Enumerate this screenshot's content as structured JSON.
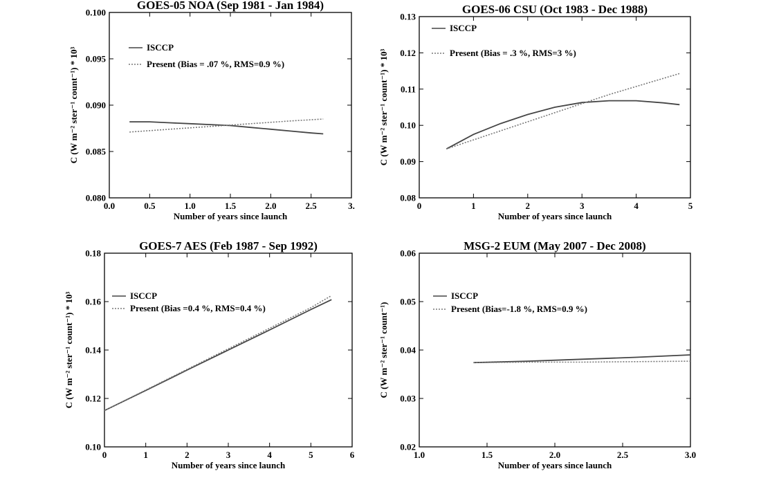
{
  "chart_data": [
    {
      "type": "line",
      "title": "GOES-05 NOA (Sep 1981 - Jan 1984)",
      "xlabel": "Number of years since launch",
      "ylabel": "C (W m⁻² ster⁻¹ count⁻¹) * 10³",
      "xlim": [
        0.0,
        3.0
      ],
      "ylim": [
        0.08,
        0.1
      ],
      "x_ticks": [
        "0.0",
        "0.5",
        "1.0",
        "1.5",
        "2.0",
        "2.5",
        "3."
      ],
      "x_tick_values": [
        0.0,
        0.5,
        1.0,
        1.5,
        2.0,
        2.5,
        3.0
      ],
      "y_ticks": [
        "0.080",
        "0.085",
        "0.090",
        "0.095",
        "0.100"
      ],
      "y_tick_values": [
        0.08,
        0.085,
        0.09,
        0.095,
        0.1
      ],
      "legend_position": "upper-left",
      "series": [
        {
          "name": "ISCCP",
          "style": "solid",
          "x": [
            0.25,
            0.5,
            0.75,
            1.0,
            1.25,
            1.5,
            1.75,
            2.0,
            2.25,
            2.5,
            2.65
          ],
          "y": [
            0.0882,
            0.0882,
            0.0881,
            0.088,
            0.0879,
            0.0878,
            0.0876,
            0.0874,
            0.0872,
            0.087,
            0.0869
          ]
        },
        {
          "name": "Present (Bias = .07 %, RMS=0.9 %)",
          "style": "dotted",
          "x": [
            0.25,
            0.75,
            1.25,
            1.75,
            2.25,
            2.65
          ],
          "y": [
            0.0871,
            0.0874,
            0.0877,
            0.088,
            0.0883,
            0.0885
          ]
        }
      ]
    },
    {
      "type": "line",
      "title": "GOES-06 CSU (Oct 1983 - Dec 1988)",
      "xlabel": "Number of years since launch",
      "ylabel": "C (W m⁻² ster⁻¹ count⁻¹) * 10³",
      "xlim": [
        0,
        5
      ],
      "ylim": [
        0.08,
        0.13
      ],
      "x_ticks": [
        "0",
        "1",
        "2",
        "3",
        "4",
        "5"
      ],
      "x_tick_values": [
        0,
        1,
        2,
        3,
        4,
        5
      ],
      "y_ticks": [
        "0.08",
        "0.09",
        "0.10",
        "0.11",
        "0.12",
        "0.13"
      ],
      "y_tick_values": [
        0.08,
        0.09,
        0.1,
        0.11,
        0.12,
        0.13
      ],
      "legend_position": "upper-left",
      "series": [
        {
          "name": "ISCCP",
          "style": "solid",
          "x": [
            0.5,
            1.0,
            1.5,
            2.0,
            2.5,
            3.0,
            3.5,
            4.0,
            4.5,
            4.8
          ],
          "y": [
            0.0935,
            0.0975,
            0.1005,
            0.103,
            0.105,
            0.1063,
            0.1068,
            0.1068,
            0.1062,
            0.1057
          ]
        },
        {
          "name": "Present (Bias = .3 %, RMS=3 %)",
          "style": "dotted",
          "x": [
            0.5,
            1.5,
            2.5,
            3.5,
            4.8
          ],
          "y": [
            0.0935,
            0.0985,
            0.1035,
            0.1085,
            0.1143
          ]
        }
      ]
    },
    {
      "type": "line",
      "title": "GOES-7 AES (Feb 1987 - Sep 1992)",
      "xlabel": "Number of years since launch",
      "ylabel": "C (W m⁻² ster⁻¹ count⁻¹) * 10³",
      "xlim": [
        0,
        6
      ],
      "ylim": [
        0.1,
        0.18
      ],
      "x_ticks": [
        "0",
        "1",
        "2",
        "3",
        "4",
        "5",
        "6"
      ],
      "x_tick_values": [
        0,
        1,
        2,
        3,
        4,
        5,
        6
      ],
      "y_ticks": [
        "0.10",
        "0.12",
        "0.14",
        "0.16",
        "0.18"
      ],
      "y_tick_values": [
        0.1,
        0.12,
        0.14,
        0.16,
        0.18
      ],
      "legend_position": "left",
      "series": [
        {
          "name": "ISCCP",
          "style": "solid",
          "x": [
            0.0,
            1.0,
            2.0,
            3.0,
            4.0,
            5.0,
            5.5
          ],
          "y": [
            0.115,
            0.1233,
            0.1317,
            0.14,
            0.1483,
            0.1567,
            0.1608
          ]
        },
        {
          "name": "Present (Bias =0.4 %, RMS=0.4 %)",
          "style": "dotted",
          "x": [
            0.0,
            1.0,
            2.0,
            3.0,
            4.0,
            5.0,
            5.5
          ],
          "y": [
            0.115,
            0.1235,
            0.132,
            0.1405,
            0.149,
            0.1575,
            0.1625
          ]
        }
      ]
    },
    {
      "type": "line",
      "title": "MSG-2 EUM (May 2007 - Dec 2008)",
      "xlabel": "Number of years since launch",
      "ylabel": "C (W m⁻² ster⁻¹ count⁻¹)",
      "xlim": [
        1.0,
        3.0
      ],
      "ylim": [
        0.02,
        0.06
      ],
      "x_ticks": [
        "1.0",
        "1.5",
        "2.0",
        "2.5",
        "3.0"
      ],
      "x_tick_values": [
        1.0,
        1.5,
        2.0,
        2.5,
        3.0
      ],
      "y_ticks": [
        "0.02",
        "0.03",
        "0.04",
        "0.05",
        "0.06"
      ],
      "y_tick_values": [
        0.02,
        0.03,
        0.04,
        0.05,
        0.06
      ],
      "legend_position": "upper-left",
      "series": [
        {
          "name": "ISCCP",
          "style": "solid",
          "x": [
            1.4,
            1.8,
            2.2,
            2.6,
            3.0
          ],
          "y": [
            0.0374,
            0.0377,
            0.0381,
            0.0385,
            0.039
          ]
        },
        {
          "name": "Present (Bias=-1.8 %, RMS=0.9 %)",
          "style": "dotted",
          "x": [
            1.4,
            1.8,
            2.2,
            2.6,
            3.0
          ],
          "y": [
            0.0374,
            0.0375,
            0.0375,
            0.0376,
            0.0377
          ]
        }
      ]
    }
  ]
}
